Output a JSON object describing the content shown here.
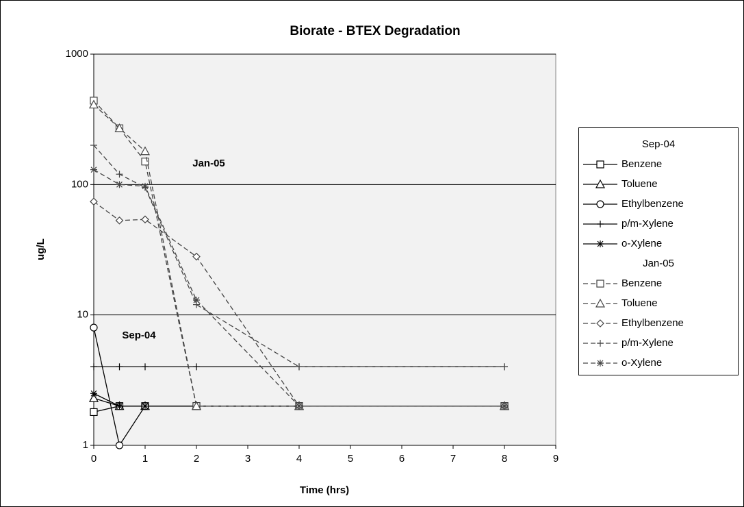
{
  "chart_data": {
    "type": "line",
    "title": "Biorate - BTEX Degradation",
    "x_label": "Time (hrs)",
    "y_label": "ug/L",
    "log_y": true,
    "grid": true,
    "x": [
      0,
      0.5,
      1,
      2,
      4,
      8
    ],
    "xlim": [
      0,
      9
    ],
    "xticks": [
      0,
      1,
      2,
      3,
      4,
      5,
      6,
      7,
      8,
      9
    ],
    "ylim": [
      1,
      1000
    ],
    "yticks": [
      1,
      10,
      100,
      1000
    ],
    "annotations": [
      "Jan-05",
      "Sep-04"
    ],
    "groups": [
      {
        "name": "Sep-04",
        "dashed": false,
        "series": [
          {
            "name": "Benzene",
            "color": "#000000",
            "marker": "square",
            "values": [
              1.8,
              2,
              2,
              2,
              2,
              2
            ]
          },
          {
            "name": "Toluene",
            "color": "#000000",
            "marker": "triangle",
            "values": [
              2.3,
              2,
              2,
              2,
              2,
              2
            ]
          },
          {
            "name": "Ethylbenzene",
            "color": "#000000",
            "marker": "circle",
            "values": [
              8,
              1,
              2,
              2,
              2,
              2
            ]
          },
          {
            "name": "p/m-Xylene",
            "color": "#000000",
            "marker": "plus",
            "values": [
              4,
              4,
              4,
              4,
              4,
              4
            ]
          },
          {
            "name": "o-Xylene",
            "color": "#000000",
            "marker": "star",
            "values": [
              2.5,
              2,
              2,
              2,
              2,
              2
            ]
          }
        ]
      },
      {
        "name": "Jan-05",
        "dashed": true,
        "series": [
          {
            "name": "Benzene",
            "color": "#444444",
            "marker": "square",
            "values": [
              440,
              270,
              150,
              2,
              2,
              2
            ]
          },
          {
            "name": "Toluene",
            "color": "#444444",
            "marker": "triangle",
            "values": [
              410,
              270,
              180,
              2,
              2,
              2
            ]
          },
          {
            "name": "Ethylbenzene",
            "color": "#444444",
            "marker": "diamond",
            "values": [
              74,
              53,
              54,
              28,
              2,
              2
            ]
          },
          {
            "name": "p/m-Xylene",
            "color": "#444444",
            "marker": "plus",
            "values": [
              200,
              120,
              95,
              12,
              4,
              4
            ]
          },
          {
            "name": "o-Xylene",
            "color": "#444444",
            "marker": "star",
            "values": [
              130,
              100,
              97,
              13,
              2,
              2
            ]
          }
        ]
      }
    ]
  }
}
